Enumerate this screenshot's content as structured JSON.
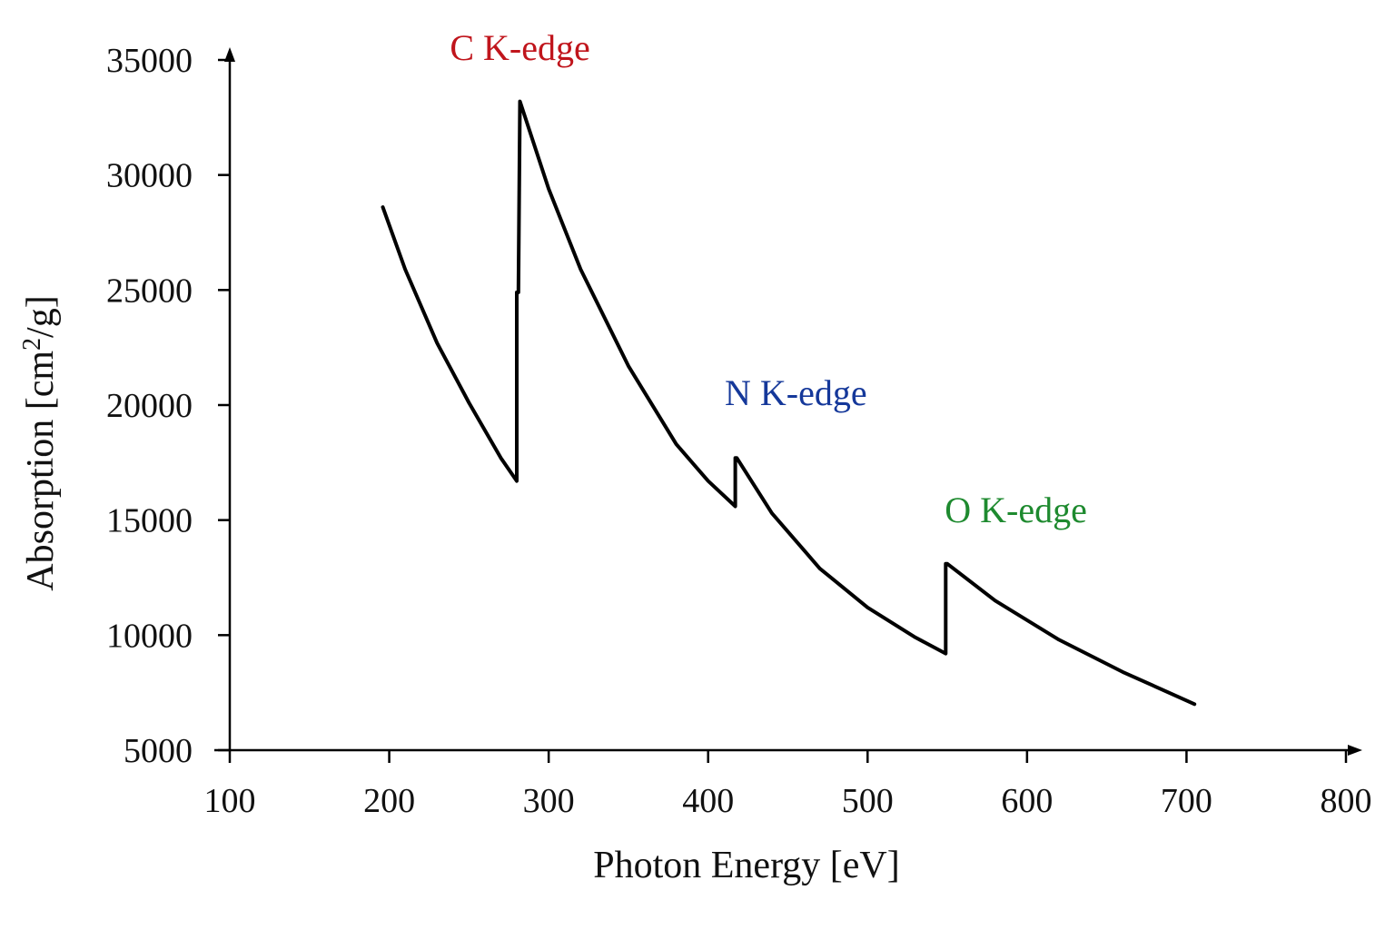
{
  "chart_data": {
    "type": "line",
    "title": "",
    "xlabel": "Photon Energy [eV]",
    "ylabel_main": "Absorption [cm",
    "ylabel_sup": "2",
    "ylabel_end": "/g]",
    "xlim": [
      100,
      800
    ],
    "ylim": [
      5000,
      35000
    ],
    "xticks": [
      100,
      200,
      300,
      400,
      500,
      600,
      700,
      800
    ],
    "yticks": [
      5000,
      10000,
      15000,
      20000,
      25000,
      30000,
      35000
    ],
    "grid": false,
    "legend": "none",
    "series": [
      {
        "line_color": "#000000",
        "x": [
          196,
          210,
          230,
          250,
          270,
          280,
          280,
          281,
          282,
          300,
          320,
          350,
          380,
          400,
          417,
          417,
          418,
          440,
          470,
          500,
          530,
          549,
          549,
          550,
          580,
          620,
          660,
          705
        ],
        "y": [
          28600,
          25900,
          22700,
          20100,
          17700,
          16700,
          24900,
          24900,
          33200,
          29400,
          25900,
          21700,
          18300,
          16700,
          15600,
          17700,
          17700,
          15300,
          12900,
          11200,
          9900,
          9200,
          13100,
          13100,
          11500,
          9800,
          8400,
          7000
        ]
      }
    ],
    "annotations": [
      {
        "text": "C K-edge",
        "color": "#c0151c",
        "x": 282,
        "y": 35000
      },
      {
        "text": "N K-edge",
        "color": "#15389a",
        "x": 455,
        "y": 20000
      },
      {
        "text": "O K-edge",
        "color": "#1e8a2f",
        "x": 593,
        "y": 14900
      }
    ]
  }
}
